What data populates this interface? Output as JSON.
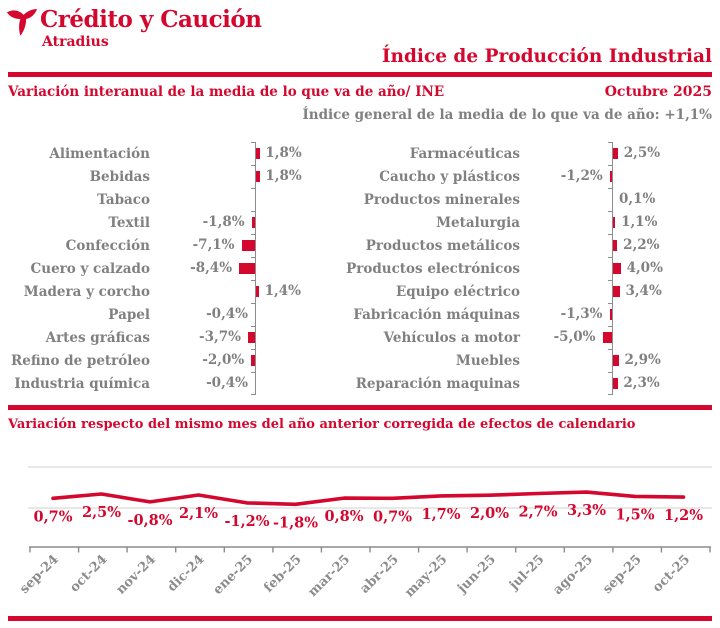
{
  "brand": {
    "name": "Crédito y Caución",
    "subtitle": "Atradius",
    "logo_icon": "atradius-bird-icon"
  },
  "header": {
    "title": "Índice de Producción Industrial",
    "period": "Octubre 2025"
  },
  "general_index_note": "Índice general de la media de lo que va de año:  +1,1%",
  "colors": {
    "brand_red": "#d4072e",
    "text_gray": "#808080",
    "axis_gray": "#8c8c8c",
    "grid_gray": "#d9d9d9",
    "background": "#ffffff"
  },
  "chart_data": [
    {
      "type": "bar",
      "panel": "left",
      "orientation": "horizontal",
      "unit": "%",
      "title": "Variación interanual de la media de lo que va de año/ INE",
      "categories": [
        "Alimentación",
        "Bebidas",
        "Tabaco",
        "Textil",
        "Confección",
        "Cuero y calzado",
        "Madera y corcho",
        "Papel",
        "Artes gráficas",
        "Refino de petróleo",
        "Industria química"
      ],
      "values": [
        1.8,
        1.8,
        null,
        -1.8,
        -7.1,
        -8.4,
        1.4,
        -0.4,
        -3.7,
        -2.0,
        -0.4
      ],
      "value_labels": [
        "1,8%",
        "1,8%",
        "",
        "-1,8%",
        "-7,1%",
        "-8,4%",
        "1,4%",
        "-0,4%",
        "-3,7%",
        "-2,0%",
        "-0,4%"
      ],
      "axis_visible": true,
      "value_axis_hidden": true
    },
    {
      "type": "bar",
      "panel": "right",
      "orientation": "horizontal",
      "unit": "%",
      "title": "",
      "categories": [
        "Farmacéuticas",
        "Caucho y plásticos",
        "Productos minerales",
        "Metalurgia",
        "Productos metálicos",
        "Productos electrónicos",
        "Equipo eléctrico",
        "Fabricación máquinas",
        "Vehículos a motor",
        "Muebles",
        "Reparación maquinas"
      ],
      "values": [
        2.5,
        -1.2,
        0.1,
        1.1,
        2.2,
        4.0,
        3.4,
        -1.3,
        -5.0,
        2.9,
        2.3
      ],
      "value_labels": [
        "2,5%",
        "-1,2%",
        "0,1%",
        "1,1%",
        "2,2%",
        "4,0%",
        "3,4%",
        "-1,3%",
        "-5,0%",
        "2,9%",
        "2,3%"
      ],
      "axis_visible": true,
      "value_axis_hidden": true
    },
    {
      "type": "line",
      "unit": "%",
      "title": "Variación respecto del mismo mes del año anterior corregida de efectos de calendario",
      "x": [
        "sep-24",
        "oct-24",
        "nov-24",
        "dic-24",
        "ene-25",
        "feb-25",
        "mar-25",
        "abr-25",
        "may-25",
        "jun-25",
        "jul-25",
        "ago-25",
        "sep-25",
        "oct-25"
      ],
      "values": [
        0.7,
        2.5,
        -0.8,
        2.1,
        -1.2,
        -1.8,
        0.8,
        0.7,
        1.7,
        2.0,
        2.7,
        3.3,
        1.5,
        1.2
      ],
      "value_labels": [
        "0,7%",
        "2,5%",
        "-0,8%",
        "2,1%",
        "-1,2%",
        "-1,8%",
        "0,8%",
        "0,7%",
        "1,7%",
        "2,0%",
        "2,7%",
        "3,3%",
        "1,5%",
        "1,2%"
      ],
      "y_axis_visible": false,
      "grid": true,
      "legend": "none"
    }
  ]
}
